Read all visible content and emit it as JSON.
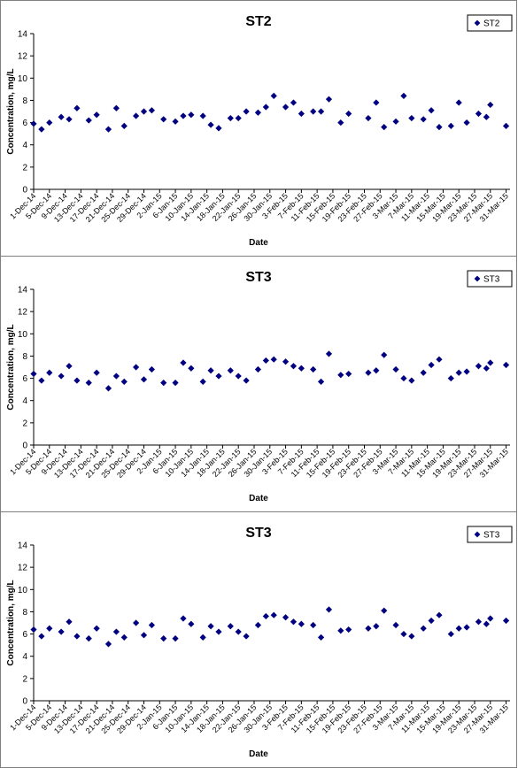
{
  "chart_data": [
    {
      "type": "scatter",
      "title": "ST2",
      "xlabel": "Date",
      "ylabel": "Concentration, mg/L",
      "ylim": [
        0,
        14
      ],
      "yticks": [
        "0",
        "2",
        "4",
        "6",
        "8",
        "10",
        "12",
        "14"
      ],
      "x_tick_labels": [
        "1-Dec-14",
        "5-Dec-14",
        "9-Dec-14",
        "13-Dec-14",
        "17-Dec-14",
        "21-Dec-14",
        "25-Dec-14",
        "29-Dec-14",
        "2-Jan-15",
        "6-Jan-15",
        "10-Jan-15",
        "14-Jan-15",
        "18-Jan-15",
        "22-Jan-15",
        "26-Jan-15",
        "30-Jan-15",
        "3-Feb-15",
        "7-Feb-15",
        "11-Feb-15",
        "15-Feb-15",
        "19-Feb-15",
        "23-Feb-15",
        "27-Feb-15",
        "3-Mar-15",
        "7-Mar-15",
        "11-Mar-15",
        "15-Mar-15",
        "19-Mar-15",
        "23-Mar-15",
        "27-Mar-15",
        "31-Mar-15"
      ],
      "legend_position": "top-right",
      "grid": false,
      "marker": "diamond",
      "color": "#000080",
      "series": [
        {
          "name": "ST2",
          "x": [
            "1-Dec-14",
            "3-Dec-14",
            "5-Dec-14",
            "8-Dec-14",
            "10-Dec-14",
            "12-Dec-14",
            "15-Dec-14",
            "17-Dec-14",
            "20-Dec-14",
            "22-Dec-14",
            "24-Dec-14",
            "27-Dec-14",
            "29-Dec-14",
            "31-Dec-14",
            "3-Jan-15",
            "6-Jan-15",
            "8-Jan-15",
            "10-Jan-15",
            "13-Jan-15",
            "15-Jan-15",
            "17-Jan-15",
            "20-Jan-15",
            "22-Jan-15",
            "24-Jan-15",
            "27-Jan-15",
            "29-Jan-15",
            "31-Jan-15",
            "3-Feb-15",
            "5-Feb-15",
            "7-Feb-15",
            "10-Feb-15",
            "12-Feb-15",
            "14-Feb-15",
            "17-Feb-15",
            "19-Feb-15",
            "24-Feb-15",
            "26-Feb-15",
            "28-Feb-15",
            "3-Mar-15",
            "5-Mar-15",
            "7-Mar-15",
            "10-Mar-15",
            "12-Mar-15",
            "14-Mar-15",
            "17-Mar-15",
            "19-Mar-15",
            "21-Mar-15",
            "24-Mar-15",
            "26-Mar-15",
            "27-Mar-15",
            "31-Mar-15"
          ],
          "y": [
            5.9,
            5.4,
            6.0,
            6.5,
            6.3,
            7.3,
            6.2,
            6.7,
            5.4,
            7.3,
            5.7,
            6.6,
            7.0,
            7.1,
            6.3,
            6.1,
            6.6,
            6.7,
            6.6,
            5.8,
            5.5,
            6.4,
            6.4,
            7.0,
            6.9,
            7.4,
            8.4,
            7.4,
            7.8,
            6.8,
            7.0,
            7.0,
            8.1,
            6.0,
            6.8,
            6.4,
            7.8,
            5.6,
            6.1,
            8.4,
            6.4,
            6.3,
            7.1,
            5.6,
            5.7,
            7.8,
            6.0,
            6.8,
            6.5,
            7.6,
            5.7
          ]
        }
      ]
    },
    {
      "type": "scatter",
      "title": "ST3",
      "xlabel": "Date",
      "ylabel": "Concentration, mg/L",
      "ylim": [
        0,
        14
      ],
      "yticks": [
        "0",
        "2",
        "4",
        "6",
        "8",
        "10",
        "12",
        "14"
      ],
      "x_tick_labels": [
        "1-Dec-14",
        "5-Dec-14",
        "9-Dec-14",
        "13-Dec-14",
        "17-Dec-14",
        "21-Dec-14",
        "25-Dec-14",
        "29-Dec-14",
        "2-Jan-15",
        "6-Jan-15",
        "10-Jan-15",
        "14-Jan-15",
        "18-Jan-15",
        "22-Jan-15",
        "26-Jan-15",
        "30-Jan-15",
        "3-Feb-15",
        "7-Feb-15",
        "11-Feb-15",
        "15-Feb-15",
        "19-Feb-15",
        "23-Feb-15",
        "27-Feb-15",
        "3-Mar-15",
        "7-Mar-15",
        "11-Mar-15",
        "15-Mar-15",
        "19-Mar-15",
        "23-Mar-15",
        "27-Mar-15",
        "31-Mar-15"
      ],
      "legend_position": "top-right",
      "grid": false,
      "marker": "diamond",
      "color": "#000080",
      "series": [
        {
          "name": "ST3",
          "x": [
            "1-Dec-14",
            "3-Dec-14",
            "5-Dec-14",
            "8-Dec-14",
            "10-Dec-14",
            "12-Dec-14",
            "15-Dec-14",
            "17-Dec-14",
            "20-Dec-14",
            "22-Dec-14",
            "24-Dec-14",
            "27-Dec-14",
            "29-Dec-14",
            "31-Dec-14",
            "3-Jan-15",
            "6-Jan-15",
            "8-Jan-15",
            "10-Jan-15",
            "13-Jan-15",
            "15-Jan-15",
            "17-Jan-15",
            "20-Jan-15",
            "22-Jan-15",
            "24-Jan-15",
            "27-Jan-15",
            "29-Jan-15",
            "31-Jan-15",
            "3-Feb-15",
            "5-Feb-15",
            "7-Feb-15",
            "10-Feb-15",
            "12-Feb-15",
            "14-Feb-15",
            "17-Feb-15",
            "19-Feb-15",
            "24-Feb-15",
            "26-Feb-15",
            "28-Feb-15",
            "3-Mar-15",
            "5-Mar-15",
            "7-Mar-15",
            "10-Mar-15",
            "12-Mar-15",
            "14-Mar-15",
            "17-Mar-15",
            "19-Mar-15",
            "21-Mar-15",
            "24-Mar-15",
            "26-Mar-15",
            "27-Mar-15",
            "31-Mar-15"
          ],
          "y": [
            6.4,
            5.8,
            6.5,
            6.2,
            7.1,
            5.8,
            5.6,
            6.5,
            5.1,
            6.2,
            5.7,
            7.0,
            5.9,
            6.8,
            5.6,
            5.6,
            7.4,
            6.9,
            5.7,
            6.7,
            6.2,
            6.7,
            6.2,
            5.8,
            6.8,
            7.6,
            7.7,
            7.5,
            7.1,
            6.9,
            6.8,
            5.7,
            8.2,
            6.3,
            6.4,
            6.5,
            6.7,
            8.1,
            6.8,
            6.0,
            5.8,
            6.5,
            7.2,
            7.7,
            6.0,
            6.5,
            6.6,
            7.1,
            6.9,
            7.4,
            7.2
          ]
        }
      ]
    },
    {
      "type": "scatter",
      "title": "ST3",
      "xlabel": "Date",
      "ylabel": "Concentration, mg/L",
      "ylim": [
        0,
        14
      ],
      "yticks": [
        "0",
        "2",
        "4",
        "6",
        "8",
        "10",
        "12",
        "14"
      ],
      "x_tick_labels": [
        "1-Dec-14",
        "5-Dec-14",
        "9-Dec-14",
        "13-Dec-14",
        "17-Dec-14",
        "21-Dec-14",
        "25-Dec-14",
        "29-Dec-14",
        "2-Jan-15",
        "6-Jan-15",
        "10-Jan-15",
        "14-Jan-15",
        "18-Jan-15",
        "22-Jan-15",
        "26-Jan-15",
        "30-Jan-15",
        "3-Feb-15",
        "7-Feb-15",
        "11-Feb-15",
        "15-Feb-15",
        "19-Feb-15",
        "23-Feb-15",
        "27-Feb-15",
        "3-Mar-15",
        "7-Mar-15",
        "11-Mar-15",
        "15-Mar-15",
        "19-Mar-15",
        "23-Mar-15",
        "27-Mar-15",
        "31-Mar-15"
      ],
      "legend_position": "top-right",
      "grid": false,
      "marker": "diamond",
      "color": "#000080",
      "series": [
        {
          "name": "ST3",
          "x": [
            "1-Dec-14",
            "3-Dec-14",
            "5-Dec-14",
            "8-Dec-14",
            "10-Dec-14",
            "12-Dec-14",
            "15-Dec-14",
            "17-Dec-14",
            "20-Dec-14",
            "22-Dec-14",
            "24-Dec-14",
            "27-Dec-14",
            "29-Dec-14",
            "31-Dec-14",
            "3-Jan-15",
            "6-Jan-15",
            "8-Jan-15",
            "10-Jan-15",
            "13-Jan-15",
            "15-Jan-15",
            "17-Jan-15",
            "20-Jan-15",
            "22-Jan-15",
            "24-Jan-15",
            "27-Jan-15",
            "29-Jan-15",
            "31-Jan-15",
            "3-Feb-15",
            "5-Feb-15",
            "7-Feb-15",
            "10-Feb-15",
            "12-Feb-15",
            "14-Feb-15",
            "17-Feb-15",
            "19-Feb-15",
            "24-Feb-15",
            "26-Feb-15",
            "28-Feb-15",
            "3-Mar-15",
            "5-Mar-15",
            "7-Mar-15",
            "10-Mar-15",
            "12-Mar-15",
            "14-Mar-15",
            "17-Mar-15",
            "19-Mar-15",
            "21-Mar-15",
            "24-Mar-15",
            "26-Mar-15",
            "27-Mar-15",
            "31-Mar-15"
          ],
          "y": [
            6.4,
            5.8,
            6.5,
            6.2,
            7.1,
            5.8,
            5.6,
            6.5,
            5.1,
            6.2,
            5.7,
            7.0,
            5.9,
            6.8,
            5.6,
            5.6,
            7.4,
            6.9,
            5.7,
            6.7,
            6.2,
            6.7,
            6.2,
            5.8,
            6.8,
            7.6,
            7.7,
            7.5,
            7.1,
            6.9,
            6.8,
            5.7,
            8.2,
            6.3,
            6.4,
            6.5,
            6.7,
            8.1,
            6.8,
            6.0,
            5.8,
            6.5,
            7.2,
            7.7,
            6.0,
            6.5,
            6.6,
            7.1,
            6.9,
            7.4,
            7.2
          ]
        }
      ]
    }
  ]
}
